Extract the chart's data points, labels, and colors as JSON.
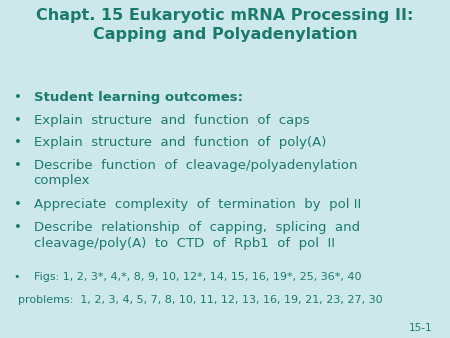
{
  "title_line1": "Chapt. 15 Eukaryotic mRNA Processing II:",
  "title_line2": "Capping and Polyadenylation",
  "background_color": "#cce8ea",
  "text_color": "#1a7a6e",
  "title_fontsize": 11.5,
  "bullet_fontsize": 9.5,
  "small_fontsize": 8.0,
  "page_label": "15-1",
  "bullets": [
    {
      "text": "Student learning outcomes:",
      "bold": true,
      "wrap": false
    },
    {
      "text": "Explain  structure  and  function  of  caps",
      "bold": false,
      "wrap": false
    },
    {
      "text": "Explain  structure  and  function  of  poly(A)",
      "bold": false,
      "wrap": false
    },
    {
      "text": "Describe  function  of  cleavage/polyadenylation\ncomplex",
      "bold": false,
      "wrap": true
    },
    {
      "text": "Appreciate  complexity  of  termination  by  pol II",
      "bold": false,
      "wrap": false
    },
    {
      "text": "Describe  relationship  of  capping,  splicing  and\ncleavage/poly(A)  to  CTD  of  Rpb1  of  pol  II",
      "bold": false,
      "wrap": true
    },
    {
      "text": "Figs: 1, 2, 3*, 4,*, 8, 9, 10, 12*, 14, 15, 16, 19*, 25, 36*, 40",
      "bold": false,
      "wrap": false
    }
  ],
  "footer_text": "problems:  1, 2, 3, 4, 5, 7, 8, 10, 11, 12, 13, 16, 19, 21, 23, 27, 30"
}
